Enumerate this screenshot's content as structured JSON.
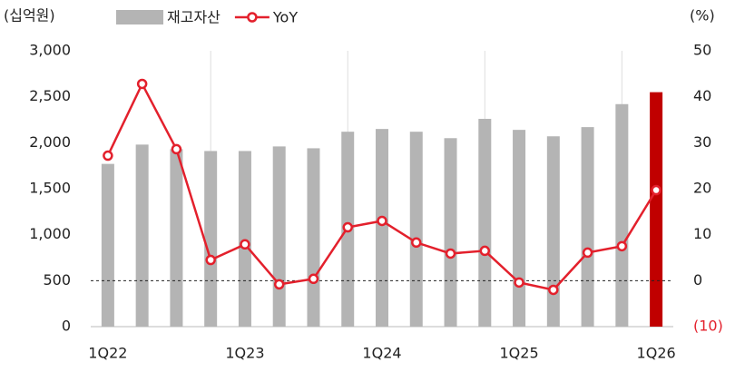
{
  "chart_data": {
    "type": "bar-line",
    "y_label": "(십억원)",
    "y2_label": "(%)",
    "categories": [
      "1Q22",
      null,
      null,
      null,
      "1Q23",
      null,
      null,
      null,
      "1Q24",
      null,
      null,
      null,
      "1Q25",
      null,
      null,
      null,
      "1Q26"
    ],
    "series": [
      {
        "name": "재고자산",
        "type": "bar",
        "color": "#b4b4b4",
        "colors": [
          "#b4b4b4",
          "#b4b4b4",
          "#b4b4b4",
          "#b4b4b4",
          "#b4b4b4",
          "#b4b4b4",
          "#b4b4b4",
          "#b4b4b4",
          "#b4b4b4",
          "#b4b4b4",
          "#b4b4b4",
          "#b4b4b4",
          "#b4b4b4",
          "#b4b4b4",
          "#b4b4b4",
          "#b4b4b4",
          "#c00000"
        ],
        "values": [
          1770,
          1980,
          1930,
          1910,
          1910,
          1960,
          1940,
          2120,
          2150,
          2120,
          2050,
          2260,
          2140,
          2070,
          2170,
          2420,
          2550
        ]
      },
      {
        "name": "YoY",
        "type": "line",
        "color": "#e3202c",
        "axis": "y2",
        "values": [
          27.2,
          42.8,
          28.6,
          4.5,
          7.9,
          -0.8,
          0.4,
          11.6,
          13.0,
          8.3,
          5.9,
          6.5,
          -0.4,
          -2.0,
          6.1,
          7.5,
          19.7
        ]
      }
    ],
    "ylim": [
      0,
      3000
    ],
    "yticks": [
      0,
      {
        "value": 500,
        "label": "500"
      },
      {
        "value": 1000,
        "label": "1,000"
      },
      {
        "value": 1500,
        "label": "1,500"
      },
      {
        "value": 2000,
        "label": "2,000"
      },
      {
        "value": 2500,
        "label": "2,500"
      },
      {
        "value": 3000,
        "label": "3,000"
      }
    ],
    "y2lim": [
      -10,
      50
    ],
    "y2ticks": [
      {
        "value": -10,
        "label": "(10)"
      },
      0,
      10,
      20,
      30,
      40,
      50
    ],
    "zero_line": true
  }
}
